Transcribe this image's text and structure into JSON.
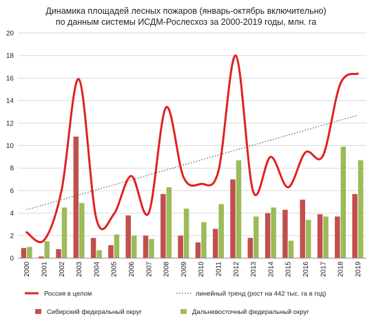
{
  "chart_data": {
    "type": "bar",
    "title_lines": [
      "Динамика площадей лесных пожаров (январь-октябрь включительно)",
      "по данным системы ИСДМ-Рослесхоз за 2000-2019 годы, млн. га"
    ],
    "categories": [
      "2000",
      "2001",
      "2002",
      "2003",
      "2004",
      "2005",
      "2006",
      "2007",
      "2008",
      "2009",
      "2010",
      "2011",
      "2012",
      "2013",
      "2014",
      "2015",
      "2016",
      "2017",
      "2018",
      "2019"
    ],
    "ylim": [
      0,
      20
    ],
    "yticks": [
      0,
      2,
      4,
      6,
      8,
      10,
      12,
      14,
      16,
      18,
      20
    ],
    "grid": true,
    "series": [
      {
        "name": "Россия в целом",
        "kind": "line",
        "color": "#e02020",
        "values": [
          2.3,
          1.6,
          6.0,
          15.9,
          3.5,
          3.9,
          7.3,
          4.0,
          13.4,
          7.2,
          6.6,
          7.7,
          18.0,
          5.9,
          9.0,
          6.3,
          9.4,
          9.1,
          15.5,
          16.4
        ]
      },
      {
        "name": "Сибирский федеральный округ",
        "kind": "bar",
        "color": "#c0504d",
        "values": [
          0.9,
          0.15,
          0.8,
          10.8,
          1.8,
          1.15,
          3.8,
          2.0,
          5.7,
          2.0,
          1.4,
          2.6,
          7.0,
          1.8,
          4.0,
          4.3,
          5.2,
          3.9,
          3.7,
          5.7
        ]
      },
      {
        "name": "Дальневосточный федеральный округ",
        "kind": "bar",
        "color": "#9bbb59",
        "values": [
          1.0,
          1.5,
          4.5,
          4.9,
          0.7,
          2.1,
          2.0,
          1.7,
          6.3,
          4.4,
          3.2,
          4.8,
          8.7,
          3.7,
          4.5,
          1.55,
          3.4,
          3.7,
          9.9,
          8.7
        ]
      }
    ],
    "trend": {
      "name": "линейный тренд (рост на 442 тыс. га в год)",
      "kind": "dotted-line",
      "color": "#333333",
      "start": 4.3,
      "end": 12.7
    },
    "legend_placement": "bottom"
  }
}
